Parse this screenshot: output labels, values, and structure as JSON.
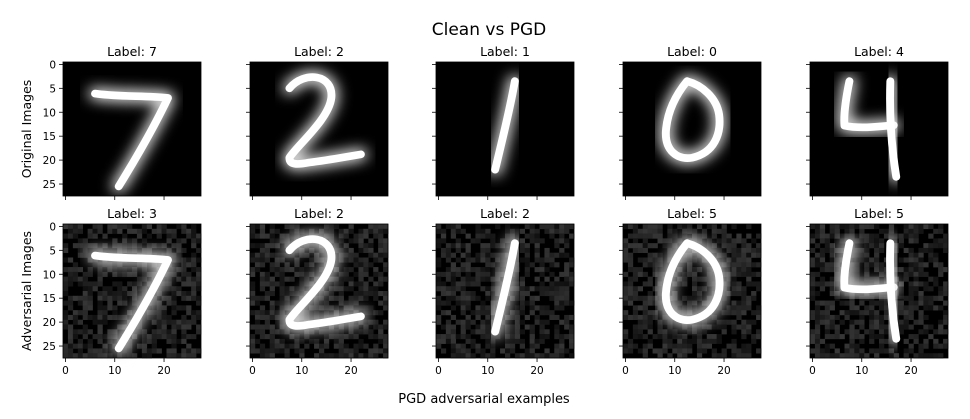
{
  "figure": {
    "title": "Clean vs PGD",
    "xlabel": "PGD adversarial examples"
  },
  "chart_data": {
    "type": "heatmap",
    "title": "Clean vs PGD",
    "xlabel": "PGD adversarial examples",
    "colormap": "gray",
    "rows": [
      {
        "ylabel": "Original Images",
        "labels": [
          "Label: 7",
          "Label: 2",
          "Label: 1",
          "Label: 0",
          "Label: 4"
        ]
      },
      {
        "ylabel": "Adversarial Images",
        "labels": [
          "Label: 3",
          "Label: 2",
          "Label: 2",
          "Label: 5",
          "Label: 5"
        ]
      }
    ],
    "digits": [
      "7",
      "2",
      "1",
      "0",
      "4"
    ],
    "xticks": [
      0,
      10,
      20
    ],
    "yticks": [
      0,
      5,
      10,
      15,
      20,
      25
    ],
    "xlim": [
      -0.5,
      27.5
    ],
    "ylim": [
      27.5,
      -0.5
    ],
    "image_size": [
      28,
      28
    ],
    "grid": false
  }
}
